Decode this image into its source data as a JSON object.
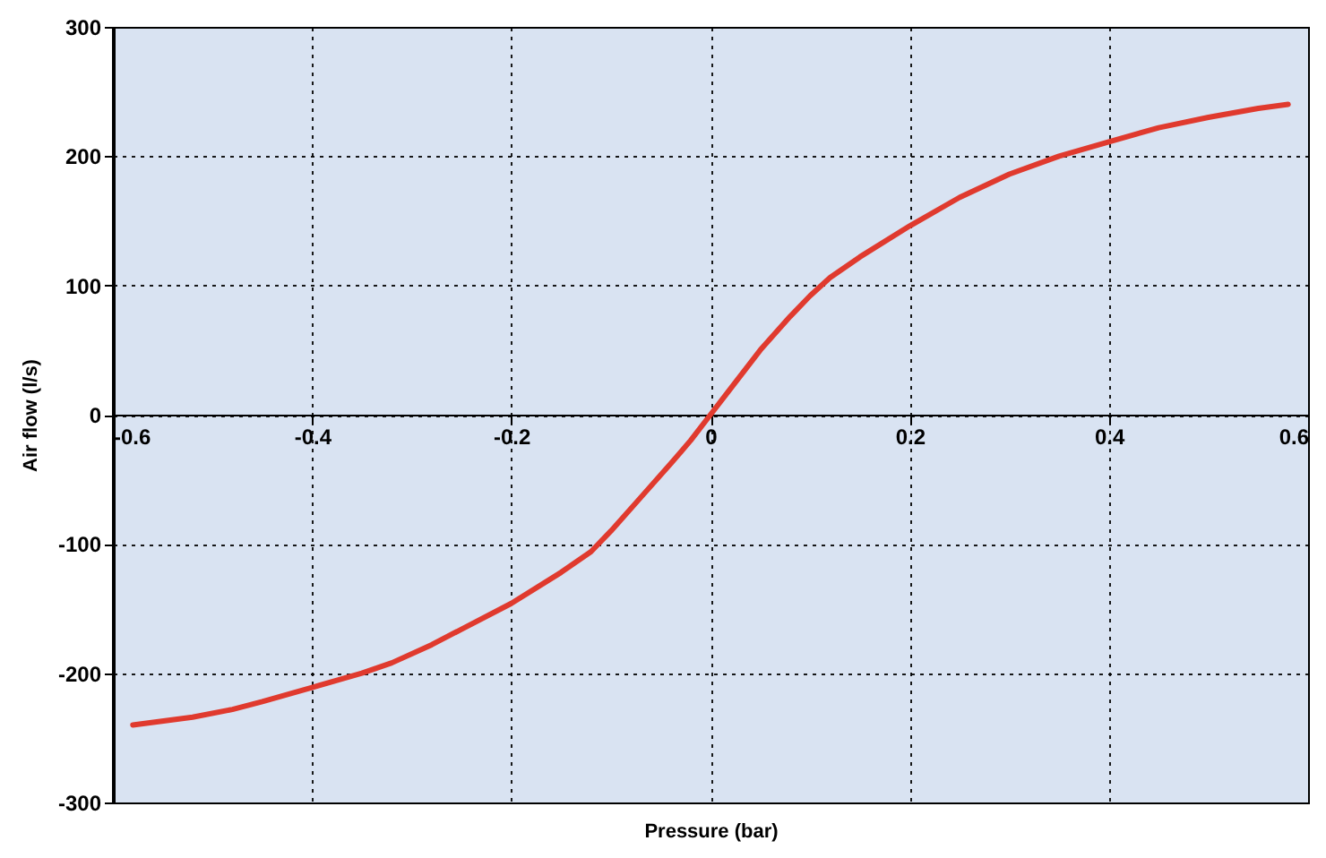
{
  "chart_data": {
    "type": "line",
    "xlabel": "Pressure (bar)",
    "ylabel": "Air flow (l/s)",
    "xlim": [
      -0.6,
      0.6
    ],
    "xticks": [
      -0.6,
      -0.4,
      -0.2,
      0,
      0.2,
      0.4,
      0.6
    ],
    "ylim": [
      -300,
      300
    ],
    "yticks": [
      -300,
      -200,
      -100,
      0,
      100,
      200,
      300
    ],
    "grid": true,
    "marker": "none",
    "line_style": "solid",
    "x": [
      -0.58,
      -0.52,
      -0.48,
      -0.45,
      -0.4,
      -0.35,
      -0.32,
      -0.28,
      -0.25,
      -0.2,
      -0.15,
      -0.12,
      -0.1,
      -0.07,
      -0.04,
      -0.02,
      0,
      0.02,
      0.05,
      0.08,
      0.1,
      0.12,
      0.15,
      0.2,
      0.25,
      0.3,
      0.35,
      0.4,
      0.45,
      0.5,
      0.55,
      0.58
    ],
    "series": [
      {
        "color": "#e03a2e",
        "values": [
          -240,
          -234,
          -228,
          -222,
          -211,
          -200,
          -192,
          -178,
          -166,
          -146,
          -122,
          -106,
          -90,
          -64,
          -38,
          -20,
          0,
          20,
          50,
          76,
          92,
          106,
          122,
          146,
          168,
          186,
          200,
          211,
          222,
          230,
          237,
          240
        ]
      }
    ]
  }
}
